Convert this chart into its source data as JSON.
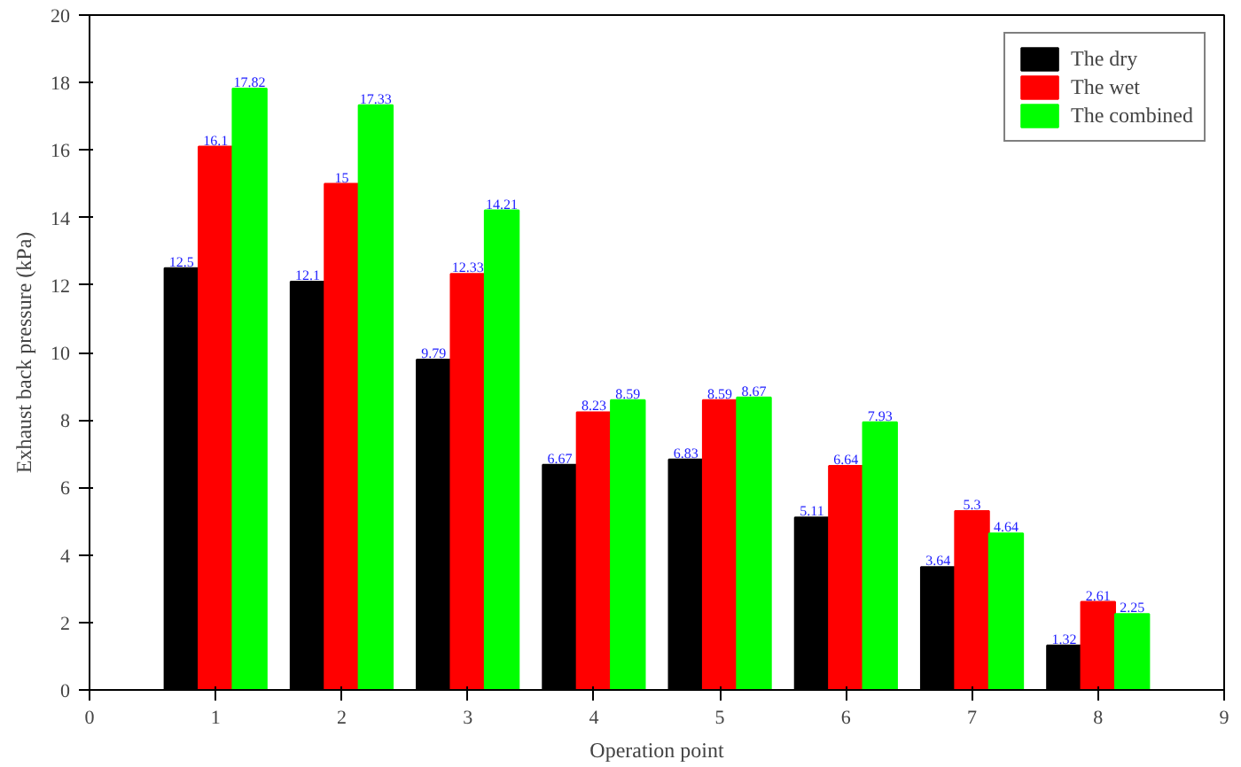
{
  "chart_data": {
    "type": "bar",
    "xlabel": "Operation point",
    "ylabel": "Exhaust back pressure (kPa)",
    "x": [
      1,
      2,
      3,
      4,
      5,
      6,
      7,
      8
    ],
    "series": [
      {
        "name": "The dry",
        "color": "#000000",
        "values": [
          12.5,
          12.1,
          9.79,
          6.67,
          6.83,
          5.11,
          3.64,
          1.32
        ]
      },
      {
        "name": "The wet",
        "color": "#ff0000",
        "values": [
          16.1,
          15,
          12.33,
          8.23,
          8.59,
          6.64,
          5.3,
          2.61
        ]
      },
      {
        "name": "The combined",
        "color": "#00ff00",
        "values": [
          17.82,
          17.33,
          14.21,
          8.59,
          8.67,
          7.93,
          4.64,
          2.25
        ]
      }
    ],
    "xlim": [
      0,
      9
    ],
    "xticks": [
      0,
      1,
      2,
      3,
      4,
      5,
      6,
      7,
      8,
      9
    ],
    "ylim": [
      0,
      20
    ],
    "yticks": [
      0,
      2,
      4,
      6,
      8,
      10,
      12,
      14,
      16,
      18,
      20
    ],
    "data_labels": true,
    "legend": "top right",
    "grid": false
  }
}
